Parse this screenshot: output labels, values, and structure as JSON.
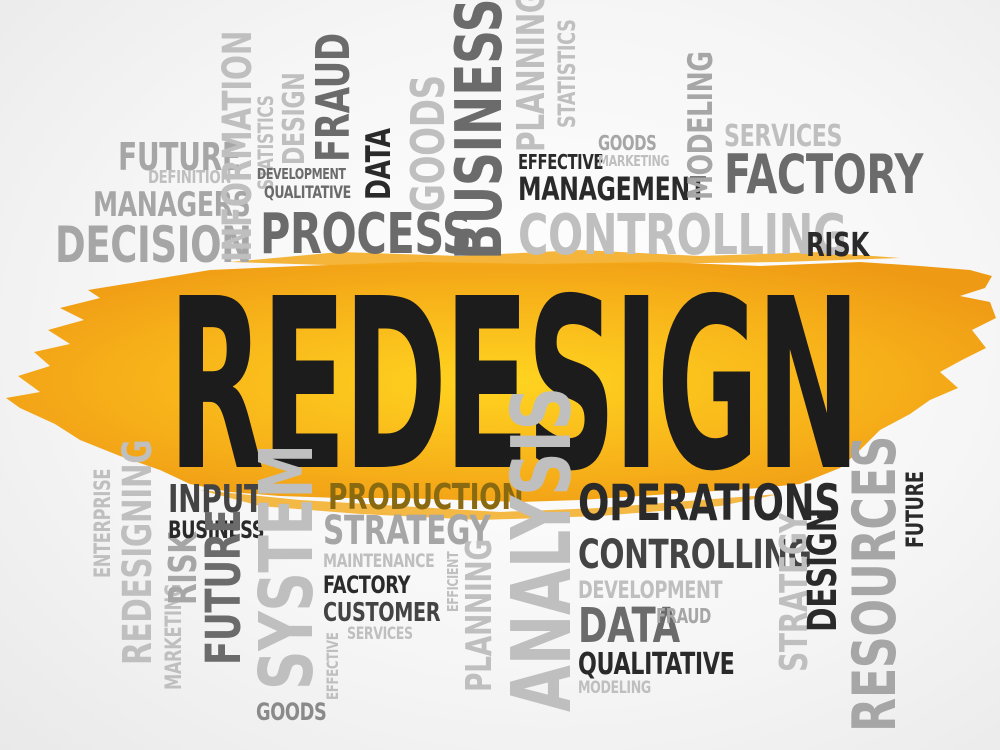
{
  "hero": "REDESIGN",
  "colors": {
    "accent": "#f5a31a",
    "accent_light": "#ffd21f",
    "text_dark": "#1c1c1c"
  },
  "words_top": [
    "FUTURE",
    "DEFINITION",
    "MANAGERS",
    "DECISION",
    "INFORMATION",
    "STATISTICS",
    "DESIGN",
    "DEVELOPMENT",
    "QUALITATIVE",
    "FRAUD",
    "DATA",
    "PROCESS",
    "GOODS",
    "BUSINESS",
    "PLANNING",
    "STATISTICS",
    "EFFECTIVE",
    "MANAGEMENT",
    "GOODS",
    "MARKETING",
    "MODELING",
    "SERVICES",
    "FACTORY",
    "CONTROLLING",
    "RISK"
  ],
  "words_bottom": [
    "ENTERPRISE",
    "REDESIGNING",
    "MARKETING",
    "RISK",
    "INPUT",
    "BUSINESS",
    "FUTURE",
    "SYSTEM",
    "GOODS",
    "PRODUCTION",
    "STRATEGY",
    "MAINTENANCE",
    "FACTORY",
    "CUSTOMER",
    "SERVICES",
    "EFFECTIVE",
    "EFFICIENT",
    "PLANNING",
    "ANALYSIS",
    "OPERATIONS",
    "CONTROLLING",
    "DEVELOPMENT",
    "DATA",
    "FRAUD",
    "QUALITATIVE",
    "MODELING",
    "STRATEGY",
    "DESIGN",
    "RESOURCES",
    "FUTURE"
  ]
}
